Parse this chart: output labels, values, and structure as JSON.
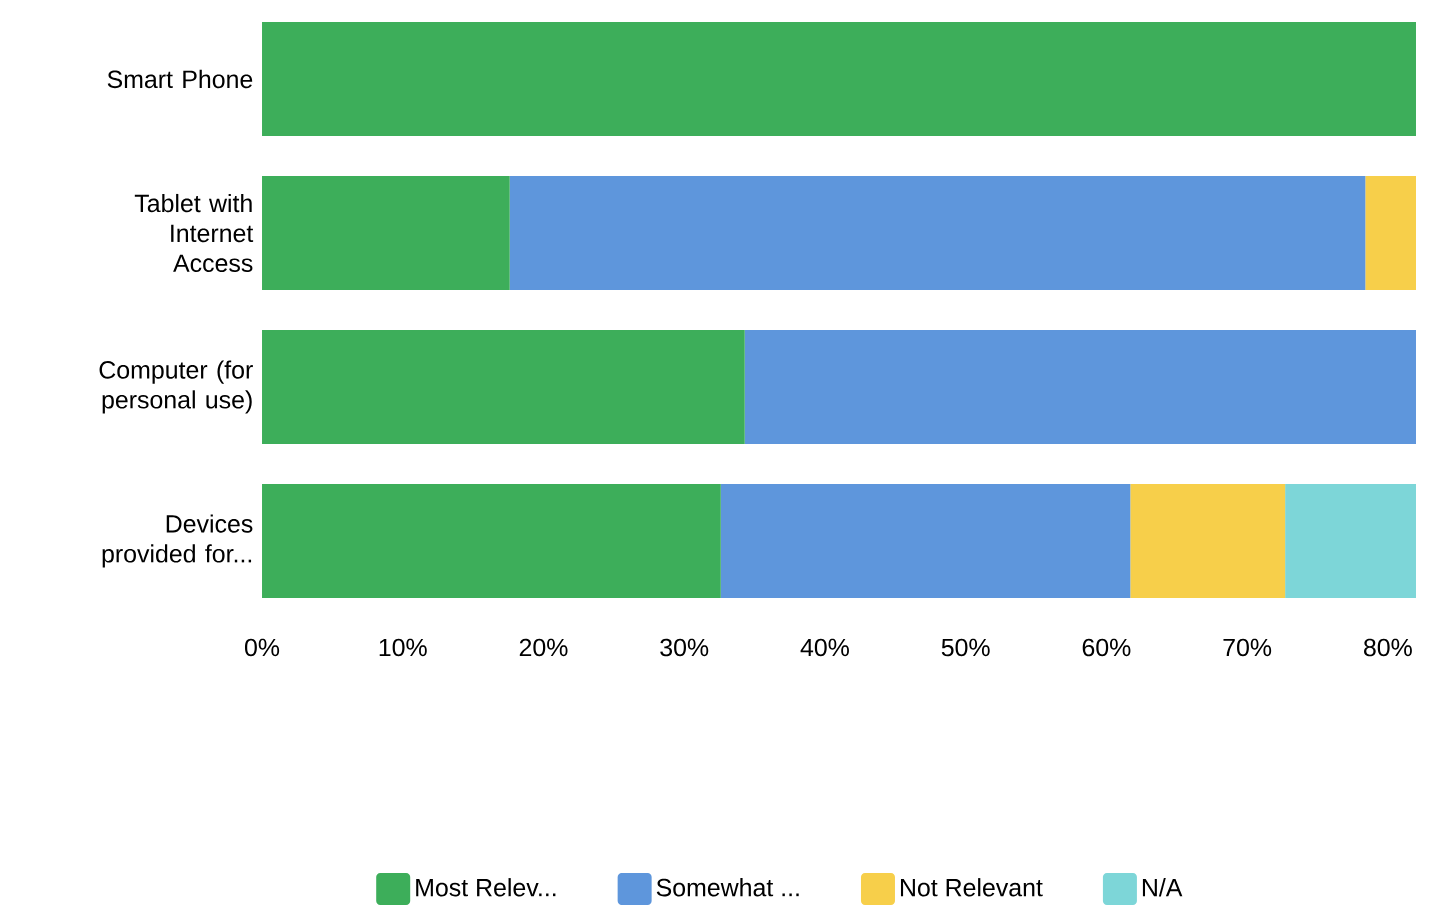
{
  "chart_data": {
    "type": "bar",
    "orientation": "horizontal",
    "stacked": true,
    "categories": [
      "Smart Phone",
      "Tablet with Internet Access",
      "Computer (for personal use)",
      "Devices provided for..."
    ],
    "series": [
      {
        "name": "Most Relev...",
        "color": "#3dae5a",
        "values": [
          82,
          17.6,
          34.3,
          32.6
        ]
      },
      {
        "name": "Somewhat ...",
        "color": "#5e96dc",
        "values": [
          0,
          60.8,
          47.7,
          29.1
        ]
      },
      {
        "name": "Not Relevant",
        "color": "#f7cf4a",
        "values": [
          0,
          3.6,
          0,
          11
        ]
      },
      {
        "name": "N/A",
        "color": "#7dd6d8",
        "values": [
          0,
          0,
          0,
          9.3
        ]
      }
    ],
    "xlim": [
      0,
      82
    ],
    "xticks": [
      {
        "value": 0,
        "label": "0%"
      },
      {
        "value": 10,
        "label": "10%"
      },
      {
        "value": 20,
        "label": "20%"
      },
      {
        "value": 30,
        "label": "30%"
      },
      {
        "value": 40,
        "label": "40%"
      },
      {
        "value": 50,
        "label": "50%"
      },
      {
        "value": 60,
        "label": "60%"
      },
      {
        "value": 70,
        "label": "70%"
      },
      {
        "value": 80,
        "label": "80%"
      }
    ],
    "grid": false,
    "legend": "bottom"
  }
}
